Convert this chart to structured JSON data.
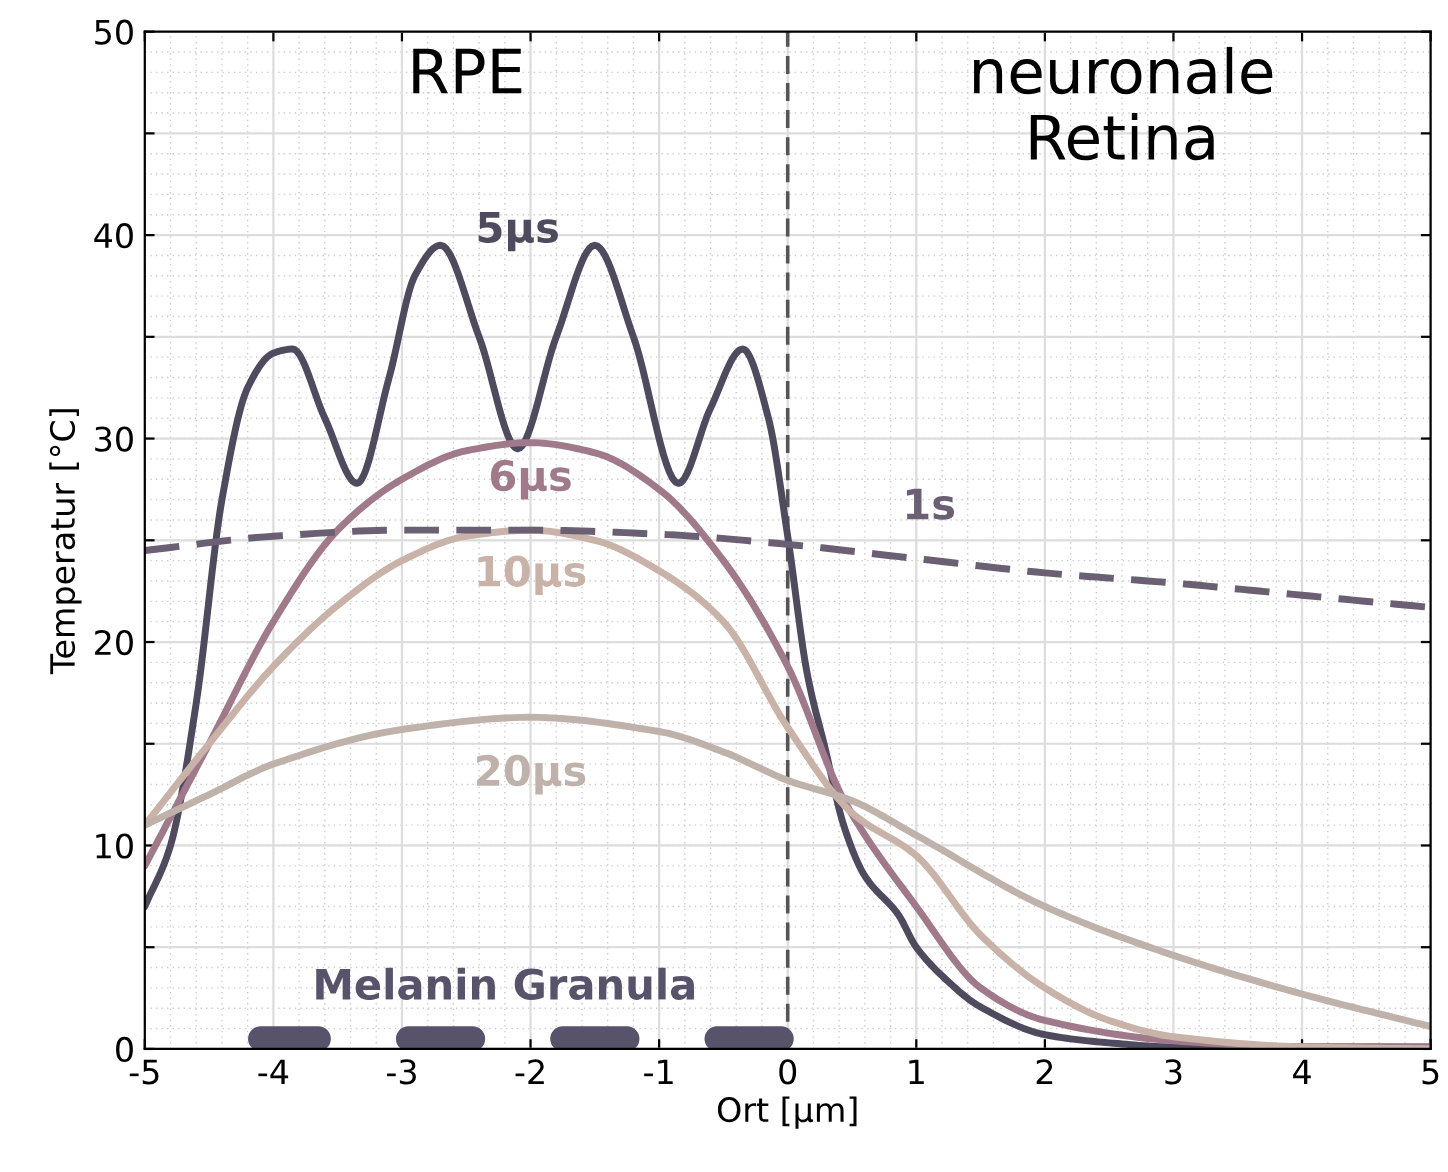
{
  "chart_data": {
    "type": "line",
    "xlabel": "Ort [µm]",
    "ylabel": "Temperatur [°C]",
    "xlim": [
      -5,
      5
    ],
    "ylim": [
      0,
      50
    ],
    "xticks": [
      -5,
      -4,
      -3,
      -2,
      -1,
      0,
      1,
      2,
      3,
      4,
      5
    ],
    "yticks": [
      0,
      {
        "value": 5,
        "label": null
      },
      10,
      {
        "value": 15,
        "label": null
      },
      20,
      {
        "value": 25,
        "label": null
      },
      30,
      {
        "value": 35,
        "label": null
      },
      40,
      {
        "value": 45,
        "label": null
      },
      50
    ],
    "grid": true,
    "legend": false,
    "line_style": "solid",
    "annotations": [
      "RPE",
      "neuronale\nRetina"
    ],
    "ref_lines": [
      {
        "axis": "x",
        "value": 0,
        "color": "#555555",
        "line_style": "dashed"
      }
    ],
    "series": [
      {
        "name": "5µs",
        "color": "#4f4a5e",
        "x": [
          -5,
          -4.8,
          -4.6,
          -4.4,
          -4.2,
          -4.0,
          -3.85,
          -3.6,
          -3.35,
          -3.1,
          -2.9,
          -2.7,
          -2.4,
          -2.1,
          -1.8,
          -1.5,
          -1.2,
          -0.85,
          -0.6,
          -0.35,
          -0.15,
          0,
          0.15,
          0.29,
          0.44,
          0.6,
          0.86,
          1,
          1.25,
          1.49,
          2,
          2.5,
          3,
          4,
          5
        ],
        "values": [
          7,
          10,
          17,
          27,
          32.5,
          34.2,
          34.4,
          31,
          27.8,
          33,
          38,
          39.5,
          35,
          29.5,
          35,
          39.5,
          35,
          27.8,
          31.5,
          34.4,
          31,
          25.2,
          18.5,
          14.8,
          10.9,
          8.5,
          6.6,
          5.0,
          3.3,
          2.1,
          0.7,
          0.3,
          0.1,
          0.1,
          0.1
        ]
      },
      {
        "name": "6µs",
        "color": "#a07a8a",
        "x": [
          -5,
          -4.5,
          -4,
          -3.5,
          -3,
          -2.5,
          -2,
          -1.5,
          -1,
          -0.5,
          0,
          0.44,
          1,
          1.5,
          2,
          3,
          4,
          5
        ],
        "values": [
          9,
          15,
          21,
          25.5,
          28,
          29.4,
          29.8,
          29.3,
          27.5,
          24,
          18.8,
          12.2,
          7,
          3,
          1.4,
          0.4,
          0.1,
          0.1
        ]
      },
      {
        "name": "10µs",
        "color": "#c9b2a8",
        "x": [
          -5,
          -4.5,
          -4,
          -3.5,
          -3,
          -2.5,
          -2,
          -1.5,
          -1,
          -0.5,
          0,
          0.5,
          1,
          1.5,
          2,
          2.5,
          3,
          4,
          5
        ],
        "values": [
          11,
          15,
          18.8,
          21.8,
          24,
          25.2,
          25.5,
          25,
          23.5,
          21,
          15.8,
          11.6,
          9.5,
          5.6,
          3.0,
          1.4,
          0.6,
          0.1,
          0
        ]
      },
      {
        "name": "20µs",
        "color": "#bfb2ab",
        "x": [
          -5,
          -4.5,
          -4,
          -3,
          -2,
          -1,
          -0.5,
          0,
          0.5,
          1,
          2,
          3,
          4,
          5
        ],
        "values": [
          11,
          12.5,
          14,
          15.7,
          16.3,
          15.6,
          14.6,
          13.2,
          12.2,
          10.5,
          7,
          4.6,
          2.7,
          1.1
        ]
      },
      {
        "name": "1s",
        "color": "#6b5f74",
        "line_style": "dashed",
        "x": [
          -5,
          -4,
          -3,
          -2,
          -1,
          0,
          1,
          2,
          3,
          4,
          5
        ],
        "values": [
          24.5,
          25.2,
          25.5,
          25.5,
          25.3,
          24.8,
          24.1,
          23.4,
          22.9,
          22.3,
          21.7
        ]
      },
      {
        "name": "Melanin Granula",
        "color": "#58536a",
        "x": [
          -4.1,
          -3.65,
          -3.6,
          -2.95,
          -2.45,
          -2.4,
          -1.75,
          -1.25,
          -1.2,
          -0.55,
          -0.05
        ],
        "values": [
          0.5,
          0.5,
          null,
          0.5,
          0.5,
          null,
          0.5,
          0.5,
          null,
          0.5,
          0.5
        ]
      }
    ]
  }
}
